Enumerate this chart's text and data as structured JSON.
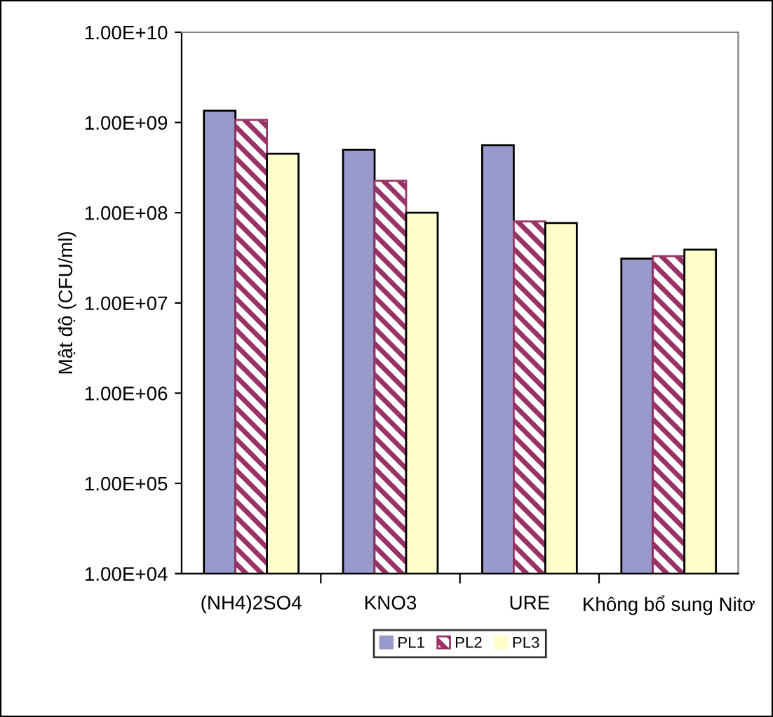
{
  "chart_data": {
    "type": "bar",
    "ylabel": "Mật độ (CFU/ml)",
    "categories": [
      "(NH4)2SO4",
      "KNO3",
      "URE",
      "Không bổ sung Nitơ"
    ],
    "series": [
      {
        "name": "PL1",
        "color": "#9999cc",
        "values": [
          1350000000.0,
          500000000.0,
          560000000.0,
          31000000.0
        ]
      },
      {
        "name": "PL2",
        "color": "#993366",
        "values": [
          1070000000.0,
          226000000.0,
          80000000.0,
          33000000.0
        ]
      },
      {
        "name": "PL3",
        "color": "#ffffcc",
        "values": [
          450000000.0,
          100000000.0,
          77000000.0,
          39000000.0
        ]
      }
    ],
    "log": true,
    "ylim": [
      10000.0,
      10000000000.0
    ],
    "yticks": [
      {
        "value": 10000.0,
        "label": "1.00E+04"
      },
      {
        "value": 100000.0,
        "label": "1.00E+05"
      },
      {
        "value": 1000000.0,
        "label": "1.00E+06"
      },
      {
        "value": 10000000.0,
        "label": "1.00E+07"
      },
      {
        "value": 100000000.0,
        "label": "1.00E+08"
      },
      {
        "value": 1000000000.0,
        "label": "1.00E+09"
      },
      {
        "value": 10000000000.0,
        "label": "1.00E+10"
      }
    ],
    "grid": false,
    "legend": "bottom"
  }
}
